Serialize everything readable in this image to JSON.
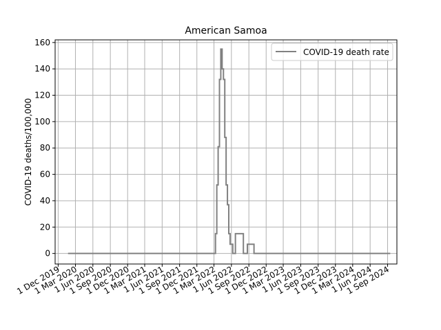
{
  "chart_data": {
    "type": "line",
    "title": "American Samoa",
    "xlabel": "",
    "ylabel": "COVID-19 deaths/100,000",
    "ylim": [
      -8,
      162
    ],
    "xlim": [
      "2019-11-15",
      "2024-10-20"
    ],
    "grid": true,
    "legend_position": "top-right",
    "y_ticks": [
      0,
      20,
      40,
      60,
      80,
      100,
      120,
      140,
      160
    ],
    "x_ticks": [
      {
        "date": "2019-12-01",
        "label": "1 Dec 2019"
      },
      {
        "date": "2020-03-01",
        "label": "1 Mar 2020"
      },
      {
        "date": "2020-06-01",
        "label": "1 Jun 2020"
      },
      {
        "date": "2020-09-01",
        "label": "1 Sep 2020"
      },
      {
        "date": "2020-12-01",
        "label": "1 Dec 2020"
      },
      {
        "date": "2021-03-01",
        "label": "1 Mar 2021"
      },
      {
        "date": "2021-06-01",
        "label": "1 Jun 2021"
      },
      {
        "date": "2021-09-01",
        "label": "1 Sep 2021"
      },
      {
        "date": "2021-12-01",
        "label": "1 Dec 2021"
      },
      {
        "date": "2022-03-01",
        "label": "1 Mar 2022"
      },
      {
        "date": "2022-06-01",
        "label": "1 Jun 2022"
      },
      {
        "date": "2022-09-01",
        "label": "1 Sep 2022"
      },
      {
        "date": "2022-12-01",
        "label": "1 Dec 2022"
      },
      {
        "date": "2023-03-01",
        "label": "1 Mar 2023"
      },
      {
        "date": "2023-06-01",
        "label": "1 Jun 2023"
      },
      {
        "date": "2023-09-01",
        "label": "1 Sep 2023"
      },
      {
        "date": "2023-12-01",
        "label": "1 Dec 2023"
      },
      {
        "date": "2024-03-01",
        "label": "1 Mar 2024"
      },
      {
        "date": "2024-06-01",
        "label": "1 Jun 2024"
      },
      {
        "date": "2024-09-01",
        "label": "1 Sep 2024"
      }
    ],
    "series": [
      {
        "name": "COVID-19 death rate",
        "color": "#808080",
        "step": "post",
        "points": [
          {
            "date": "2020-01-22",
            "value": 0
          },
          {
            "date": "2022-03-02",
            "value": 0
          },
          {
            "date": "2022-03-09",
            "value": 15
          },
          {
            "date": "2022-03-16",
            "value": 52
          },
          {
            "date": "2022-03-23",
            "value": 81
          },
          {
            "date": "2022-03-30",
            "value": 132
          },
          {
            "date": "2022-04-06",
            "value": 155
          },
          {
            "date": "2022-04-13",
            "value": 140
          },
          {
            "date": "2022-04-20",
            "value": 132
          },
          {
            "date": "2022-04-27",
            "value": 88
          },
          {
            "date": "2022-05-04",
            "value": 52
          },
          {
            "date": "2022-05-11",
            "value": 37
          },
          {
            "date": "2022-05-18",
            "value": 15
          },
          {
            "date": "2022-05-25",
            "value": 7
          },
          {
            "date": "2022-06-08",
            "value": 0
          },
          {
            "date": "2022-06-22",
            "value": 15
          },
          {
            "date": "2022-08-03",
            "value": 0
          },
          {
            "date": "2022-08-24",
            "value": 7
          },
          {
            "date": "2022-09-28",
            "value": 0
          },
          {
            "date": "2024-09-15",
            "value": 0
          }
        ]
      }
    ]
  }
}
